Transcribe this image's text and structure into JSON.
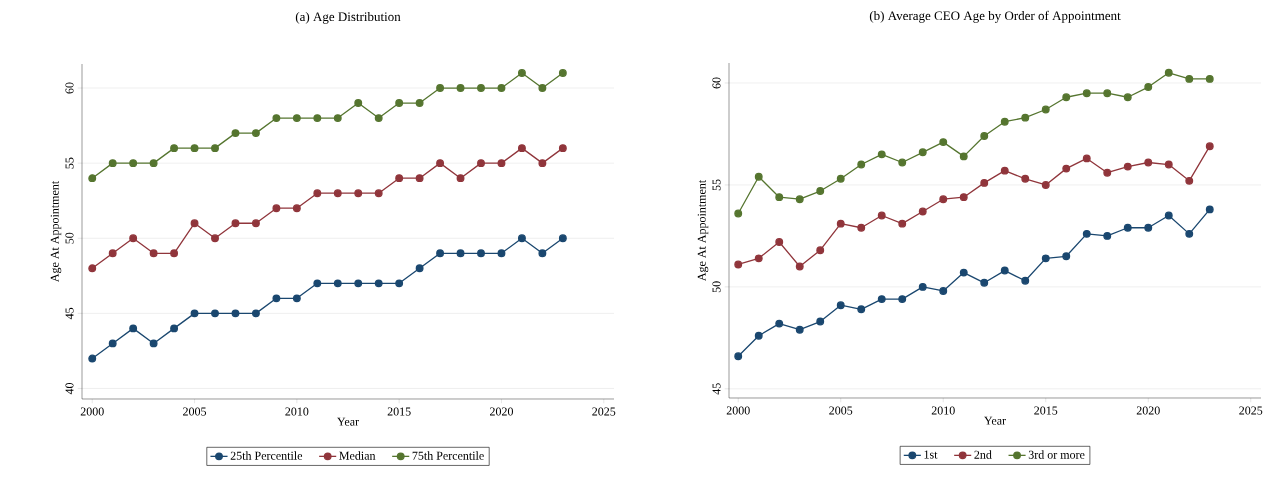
{
  "chart_data": [
    {
      "type": "line",
      "title": "(a) Age Distribution",
      "xlabel": "Year",
      "ylabel": "Age At Appointment",
      "x": [
        2000,
        2001,
        2002,
        2003,
        2004,
        2005,
        2006,
        2007,
        2008,
        2009,
        2010,
        2011,
        2012,
        2013,
        2014,
        2015,
        2016,
        2017,
        2018,
        2019,
        2020,
        2021,
        2022,
        2023
      ],
      "series": [
        {
          "name": "25th Percentile",
          "color": "#1a476f",
          "values": [
            42,
            43,
            44,
            43,
            44,
            45,
            45,
            45,
            45,
            46,
            46,
            47,
            47,
            47,
            47,
            47,
            48,
            49,
            49,
            49,
            49,
            50,
            49,
            50
          ]
        },
        {
          "name": "Median",
          "color": "#90353b",
          "values": [
            48,
            49,
            50,
            49,
            49,
            51,
            50,
            51,
            51,
            52,
            52,
            53,
            53,
            53,
            53,
            54,
            54,
            55,
            54,
            55,
            55,
            56,
            55,
            56
          ]
        },
        {
          "name": "75th Percentile",
          "color": "#55752f",
          "values": [
            54,
            55,
            55,
            55,
            56,
            56,
            56,
            57,
            57,
            58,
            58,
            58,
            58,
            59,
            58,
            59,
            59,
            60,
            60,
            60,
            60,
            61,
            60,
            61
          ]
        }
      ],
      "xlim": [
        1999.5,
        2025.5
      ],
      "ylim": [
        39.3,
        61.6
      ],
      "xticks": [
        2000,
        2005,
        2010,
        2015,
        2020,
        2025
      ],
      "yticks": [
        40,
        45,
        50,
        55,
        60
      ],
      "grid": "y",
      "legend": "bottom",
      "marker": "circle",
      "line_style": "solid"
    },
    {
      "type": "line",
      "title": "(b) Average CEO Age by Order of Appointment",
      "xlabel": "Year",
      "ylabel": "Age At Appointment",
      "x": [
        2000,
        2001,
        2002,
        2003,
        2004,
        2005,
        2006,
        2007,
        2008,
        2009,
        2010,
        2011,
        2012,
        2013,
        2014,
        2015,
        2016,
        2017,
        2018,
        2019,
        2020,
        2021,
        2022,
        2023
      ],
      "series": [
        {
          "name": "1st",
          "color": "#1a476f",
          "values": [
            46.6,
            47.6,
            48.2,
            47.9,
            48.3,
            49.1,
            48.9,
            49.4,
            49.4,
            50.0,
            49.8,
            50.7,
            50.2,
            50.8,
            50.3,
            51.4,
            51.5,
            52.6,
            52.5,
            52.9,
            52.9,
            53.5,
            52.6,
            53.8
          ]
        },
        {
          "name": "2nd",
          "color": "#90353b",
          "values": [
            51.1,
            51.4,
            52.2,
            51.0,
            51.8,
            53.1,
            52.9,
            53.5,
            53.1,
            53.7,
            54.3,
            54.4,
            55.1,
            55.7,
            55.3,
            55.0,
            55.8,
            56.3,
            55.6,
            55.9,
            56.1,
            56.0,
            55.2,
            56.9
          ]
        },
        {
          "name": "3rd or more",
          "color": "#55752f",
          "values": [
            53.6,
            55.4,
            54.4,
            54.3,
            54.7,
            55.3,
            56.0,
            56.5,
            56.1,
            56.6,
            57.1,
            56.4,
            57.4,
            58.1,
            58.3,
            58.7,
            59.3,
            59.5,
            59.5,
            59.3,
            59.8,
            60.5,
            60.2,
            60.2
          ]
        }
      ],
      "xlim": [
        1999.55,
        2025.5
      ],
      "ylim": [
        44.55,
        60.98
      ],
      "xticks": [
        2000,
        2005,
        2010,
        2015,
        2020,
        2025
      ],
      "yticks": [
        45,
        50,
        55,
        60
      ],
      "grid": "y",
      "legend": "bottom",
      "marker": "circle",
      "line_style": "solid"
    }
  ]
}
